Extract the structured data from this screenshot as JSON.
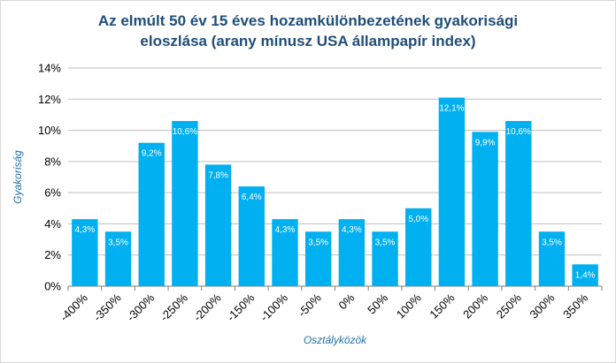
{
  "chart_data": {
    "type": "bar",
    "title_line1": "Az elmúlt 50 év 15 éves hozamkülönbezetének gyakorisági",
    "title_line2": "eloszlása (arany mínusz USA állampapír index)",
    "xlabel": "Osztályközök",
    "ylabel": "Gyakoriság",
    "categories": [
      "-400%",
      "-350%",
      "-300%",
      "-250%",
      "-200%",
      "-150%",
      "-100%",
      "-50%",
      "0%",
      "50%",
      "100%",
      "150%",
      "200%",
      "250%",
      "300%",
      "350%"
    ],
    "values": [
      4.3,
      3.5,
      9.2,
      10.6,
      7.8,
      6.4,
      4.3,
      3.5,
      4.3,
      3.5,
      5.0,
      12.1,
      9.9,
      10.6,
      3.5,
      1.4
    ],
    "value_labels": [
      "4,3%",
      "3,5%",
      "9,2%",
      "10,6%",
      "7,8%",
      "6,4%",
      "4,3%",
      "3,5%",
      "4,3%",
      "3,5%",
      "5,0%",
      "12,1%",
      "9,9%",
      "10,6%",
      "3,5%",
      "1,4%"
    ],
    "y_ticks": [
      0,
      2,
      4,
      6,
      8,
      10,
      12,
      14
    ],
    "y_tick_labels": [
      "0%",
      "2%",
      "4%",
      "6%",
      "8%",
      "10%",
      "12%",
      "14%"
    ],
    "ylim": [
      0,
      14
    ],
    "grid": true,
    "bar_color": "#00b0f0",
    "grid_color": "#bfbfbf"
  }
}
